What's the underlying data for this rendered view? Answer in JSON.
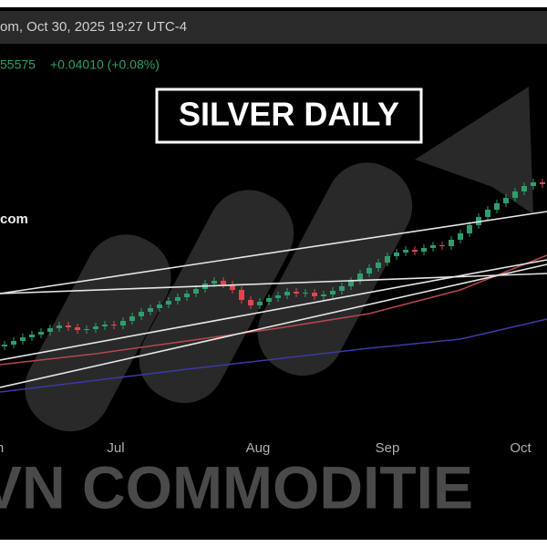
{
  "chart_data": {
    "type": "candlestick",
    "header": "om, Oct 30, 2025 19:27 UTC-4",
    "price": "55575",
    "change": "+0.04010 (+0.08%)",
    "title": "SILVER DAILY",
    "source": "com",
    "watermark": "VN COMMODITIE",
    "up_color": "#2e9e6e",
    "down_color": "#e0474c",
    "xlim": [
      -0.5,
      59.5
    ],
    "ylim": [
      28,
      56
    ],
    "xticks": [
      {
        "value": -0.5,
        "label": "n"
      },
      {
        "value": 12.2,
        "label": "Jul"
      },
      {
        "value": 27.8,
        "label": "Aug"
      },
      {
        "value": 42,
        "label": "Sep"
      },
      {
        "value": 56.6,
        "label": "Oct"
      }
    ],
    "open": [
      37.0,
      37.2,
      37.6,
      38.0,
      38.3,
      38.6,
      39.0,
      39.3,
      39.1,
      38.8,
      38.9,
      39.2,
      39.4,
      39.3,
      39.8,
      40.3,
      40.8,
      41.2,
      41.6,
      42.0,
      42.4,
      42.8,
      43.3,
      43.9,
      44.2,
      43.8,
      43.2,
      42.1,
      41.5,
      41.9,
      42.3,
      42.6,
      43.0,
      42.8,
      42.9,
      42.5,
      42.7,
      43.1,
      43.6,
      44.2,
      45.0,
      45.6,
      46.2,
      46.9,
      47.3,
      47.6,
      47.4,
      47.8,
      48.1,
      48.0,
      48.7,
      49.4,
      50.3,
      51.2,
      52.0,
      52.7,
      53.3,
      54.0,
      54.6,
      55.0
    ],
    "high": [
      37.6,
      38.0,
      38.4,
      38.7,
      39.0,
      39.4,
      39.7,
      39.7,
      39.5,
      39.3,
      39.6,
      39.8,
      39.8,
      40.2,
      40.7,
      41.2,
      41.6,
      42.0,
      42.4,
      42.8,
      43.2,
      43.7,
      44.3,
      44.6,
      44.6,
      44.2,
      43.6,
      42.5,
      42.3,
      42.7,
      43.0,
      43.4,
      43.4,
      43.3,
      43.3,
      43.1,
      43.5,
      44.0,
      44.6,
      45.4,
      46.0,
      46.6,
      47.3,
      47.7,
      48.0,
      48.0,
      48.2,
      48.5,
      48.5,
      49.1,
      49.8,
      50.7,
      51.6,
      52.4,
      53.1,
      53.7,
      54.4,
      55.0,
      55.4,
      55.4
    ],
    "low": [
      36.6,
      36.8,
      37.2,
      37.6,
      37.9,
      38.2,
      38.6,
      38.7,
      38.4,
      38.4,
      38.5,
      38.8,
      38.9,
      38.9,
      39.4,
      39.9,
      40.4,
      40.8,
      41.2,
      41.6,
      42.0,
      42.4,
      42.9,
      43.5,
      43.4,
      42.8,
      41.7,
      41.1,
      41.1,
      41.5,
      41.9,
      42.2,
      42.4,
      42.4,
      42.1,
      42.1,
      42.3,
      42.7,
      43.2,
      43.8,
      44.6,
      45.2,
      45.8,
      46.5,
      46.9,
      47.0,
      47.0,
      47.4,
      47.6,
      47.6,
      48.3,
      49.0,
      49.9,
      50.8,
      51.6,
      52.3,
      52.9,
      53.6,
      54.2,
      54.4
    ],
    "close": [
      37.2,
      37.6,
      38.0,
      38.3,
      38.6,
      39.0,
      39.3,
      39.1,
      38.8,
      38.9,
      39.2,
      39.4,
      39.3,
      39.8,
      40.3,
      40.8,
      41.2,
      41.6,
      42.0,
      42.4,
      42.8,
      43.3,
      43.9,
      44.2,
      43.8,
      43.2,
      42.1,
      41.5,
      41.9,
      42.3,
      42.6,
      43.0,
      42.8,
      42.9,
      42.5,
      42.7,
      43.1,
      43.6,
      44.2,
      45.0,
      45.6,
      46.2,
      46.9,
      47.3,
      47.6,
      47.4,
      47.8,
      48.1,
      48.0,
      48.7,
      49.4,
      50.3,
      51.2,
      52.0,
      52.7,
      53.3,
      54.0,
      54.6,
      55.0,
      54.8
    ],
    "averages": [
      {
        "color": "#b5484b",
        "x": [
          -0.5,
          10,
          20,
          30,
          40,
          50,
          59.5
        ],
        "values": [
          35.0,
          36.2,
          37.6,
          39.0,
          40.6,
          43.2,
          47.0
        ]
      },
      {
        "color": "#3b3aa6",
        "x": [
          -0.5,
          20,
          40,
          50,
          59.5
        ],
        "values": [
          32.0,
          34.5,
          36.8,
          37.8,
          40.0
        ]
      }
    ],
    "trendlines": [
      {
        "color": "#e6e6e6",
        "x": [
          -0.5,
          59.5
        ],
        "values": [
          42.8,
          51.8
        ]
      },
      {
        "color": "#e6e6e6",
        "x": [
          -0.5,
          59.5
        ],
        "values": [
          42.8,
          45.0
        ]
      },
      {
        "color": "#e6e6e6",
        "x": [
          -0.5,
          59.5
        ],
        "values": [
          35.5,
          46.5
        ]
      },
      {
        "color": "#e6e6e6",
        "x": [
          -0.5,
          59.5
        ],
        "values": [
          32.5,
          46.0
        ]
      }
    ]
  }
}
